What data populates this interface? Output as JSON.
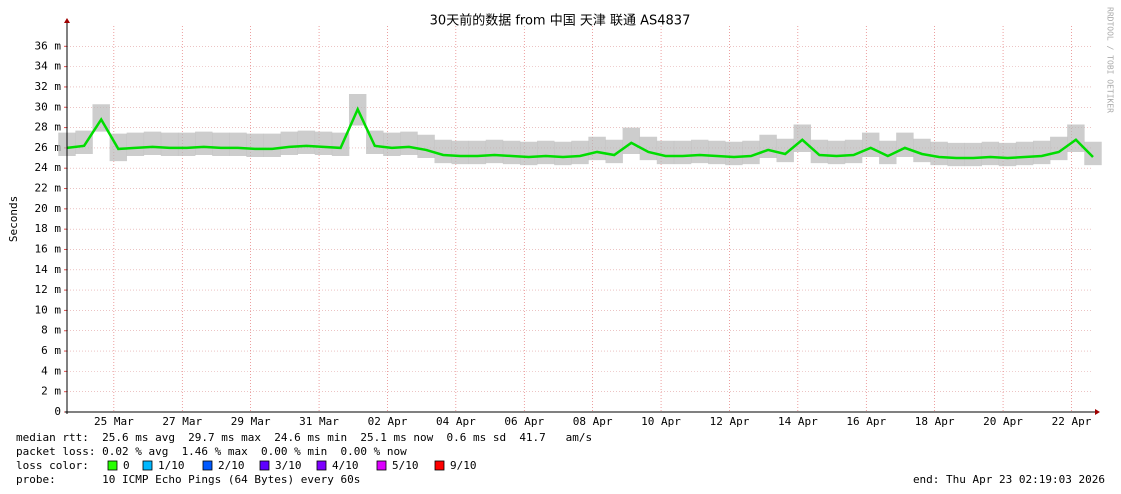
{
  "chart_data": {
    "type": "line",
    "title": "30天前的数据 from 中国 天津 联通 AS4837",
    "ylabel": "Seconds",
    "watermark": "RRDTOOL / TOBI OETIKER",
    "x": [
      0,
      0.5,
      1,
      1.5,
      2,
      2.5,
      3,
      3.5,
      4,
      4.5,
      5,
      5.5,
      6,
      6.5,
      7,
      7.5,
      8,
      8.5,
      9,
      9.5,
      10,
      10.5,
      11,
      11.5,
      12,
      12.5,
      13,
      13.5,
      14,
      14.5,
      15,
      15.5,
      16,
      16.5,
      17,
      17.5,
      18,
      18.5,
      19,
      19.5,
      20,
      20.5,
      21,
      21.5,
      22,
      22.5,
      23,
      23.5,
      24,
      24.5,
      25,
      25.5,
      26,
      26.5,
      27,
      27.5,
      28,
      28.5,
      29,
      29.5,
      30
    ],
    "series": [
      {
        "color": "#00dd00",
        "values": [
          0.026,
          0.0262,
          0.0288,
          0.0259,
          0.026,
          0.0261,
          0.026,
          0.026,
          0.0261,
          0.026,
          0.026,
          0.0259,
          0.0259,
          0.0261,
          0.0262,
          0.0261,
          0.026,
          0.0298,
          0.0262,
          0.026,
          0.0261,
          0.0258,
          0.0253,
          0.0252,
          0.0252,
          0.0253,
          0.0252,
          0.0251,
          0.0252,
          0.0251,
          0.0252,
          0.0256,
          0.0253,
          0.0265,
          0.0256,
          0.0252,
          0.0252,
          0.0253,
          0.0252,
          0.0251,
          0.0252,
          0.0258,
          0.0254,
          0.0268,
          0.0253,
          0.0252,
          0.0253,
          0.026,
          0.0252,
          0.026,
          0.0254,
          0.0251,
          0.025,
          0.025,
          0.0251,
          0.025,
          0.0251,
          0.0252,
          0.0256,
          0.0268,
          0.0251
        ]
      }
    ],
    "band": {
      "color": "#b8b8b8",
      "low": [
        0.0252,
        0.0254,
        0.0276,
        0.0247,
        0.0252,
        0.0253,
        0.0252,
        0.0252,
        0.0253,
        0.0252,
        0.0252,
        0.0251,
        0.0251,
        0.0253,
        0.0254,
        0.0253,
        0.0252,
        0.0282,
        0.0254,
        0.0252,
        0.0253,
        0.025,
        0.0245,
        0.0244,
        0.0244,
        0.0245,
        0.0244,
        0.0243,
        0.0244,
        0.0243,
        0.0244,
        0.0248,
        0.0245,
        0.0254,
        0.0248,
        0.0244,
        0.0244,
        0.0245,
        0.0244,
        0.0243,
        0.0244,
        0.025,
        0.0246,
        0.0256,
        0.0245,
        0.0244,
        0.0245,
        0.0251,
        0.0244,
        0.0251,
        0.0246,
        0.0243,
        0.0242,
        0.0242,
        0.0243,
        0.0242,
        0.0243,
        0.0244,
        0.0248,
        0.0256,
        0.0243
      ],
      "high": [
        0.0275,
        0.0277,
        0.0303,
        0.0274,
        0.0275,
        0.0276,
        0.0275,
        0.0275,
        0.0276,
        0.0275,
        0.0275,
        0.0274,
        0.0274,
        0.0276,
        0.0277,
        0.0276,
        0.0275,
        0.0313,
        0.0277,
        0.0275,
        0.0276,
        0.0273,
        0.0268,
        0.0267,
        0.0267,
        0.0268,
        0.0267,
        0.0266,
        0.0267,
        0.0266,
        0.0267,
        0.0271,
        0.0268,
        0.028,
        0.0271,
        0.0267,
        0.0267,
        0.0268,
        0.0267,
        0.0266,
        0.0267,
        0.0273,
        0.0269,
        0.0283,
        0.0268,
        0.0267,
        0.0268,
        0.0275,
        0.0267,
        0.0275,
        0.0269,
        0.0266,
        0.0265,
        0.0265,
        0.0266,
        0.0265,
        0.0266,
        0.0267,
        0.0271,
        0.0283,
        0.0266
      ]
    },
    "xlim": [
      0,
      30
    ],
    "xticks": [
      {
        "value": 1.37,
        "label": "25 Mar"
      },
      {
        "value": 3.37,
        "label": "27 Mar"
      },
      {
        "value": 5.37,
        "label": "29 Mar"
      },
      {
        "value": 7.37,
        "label": "31 Mar"
      },
      {
        "value": 9.37,
        "label": "02 Apr"
      },
      {
        "value": 11.37,
        "label": "04 Apr"
      },
      {
        "value": 13.37,
        "label": "06 Apr"
      },
      {
        "value": 15.37,
        "label": "08 Apr"
      },
      {
        "value": 17.37,
        "label": "10 Apr"
      },
      {
        "value": 19.37,
        "label": "12 Apr"
      },
      {
        "value": 21.37,
        "label": "14 Apr"
      },
      {
        "value": 23.37,
        "label": "16 Apr"
      },
      {
        "value": 25.37,
        "label": "18 Apr"
      },
      {
        "value": 27.37,
        "label": "20 Apr"
      },
      {
        "value": 29.37,
        "label": "22 Apr"
      }
    ],
    "ylim": [
      0,
      0.038
    ],
    "yticks": [
      0,
      {
        "value": 0.002,
        "label": "2 m"
      },
      {
        "value": 0.004,
        "label": "4 m"
      },
      {
        "value": 0.006,
        "label": "6 m"
      },
      {
        "value": 0.008,
        "label": "8 m"
      },
      {
        "value": 0.01,
        "label": "10 m"
      },
      {
        "value": 0.012,
        "label": "12 m"
      },
      {
        "value": 0.014,
        "label": "14 m"
      },
      {
        "value": 0.016,
        "label": "16 m"
      },
      {
        "value": 0.018,
        "label": "18 m"
      },
      {
        "value": 0.02,
        "label": "20 m"
      },
      {
        "value": 0.022,
        "label": "22 m"
      },
      {
        "value": 0.024,
        "label": "24 m"
      },
      {
        "value": 0.026,
        "label": "26 m"
      },
      {
        "value": 0.028,
        "label": "28 m"
      },
      {
        "value": 0.03,
        "label": "30 m"
      },
      {
        "value": 0.032,
        "label": "32 m"
      },
      {
        "value": 0.034,
        "label": "34 m"
      },
      {
        "value": 0.036,
        "label": "36 m"
      }
    ],
    "grid": true,
    "stats": [
      "median rtt:  25.6 ms avg  29.7 ms max  24.6 ms min  25.1 ms now  0.6 ms sd  41.7   am/s",
      "packet loss: 0.02 % avg  1.46 % max  0.00 % min  0.00 % now"
    ],
    "loss_title": "loss color:",
    "loss_colors": [
      {
        "label": "0",
        "color": "#26ff00"
      },
      {
        "label": "1/10",
        "color": "#00b8ff"
      },
      {
        "label": "2/10",
        "color": "#0059ff"
      },
      {
        "label": "3/10",
        "color": "#5e00ff"
      },
      {
        "label": "4/10",
        "color": "#7e00ff"
      },
      {
        "label": "5/10",
        "color": "#dd00ff"
      },
      {
        "label": "9/10",
        "color": "#ff0000"
      }
    ],
    "probe": "probe:       10 ICMP Echo Pings (64 Bytes) every 60s",
    "end": "end: Thu Apr 23 02:19:03 2026"
  }
}
